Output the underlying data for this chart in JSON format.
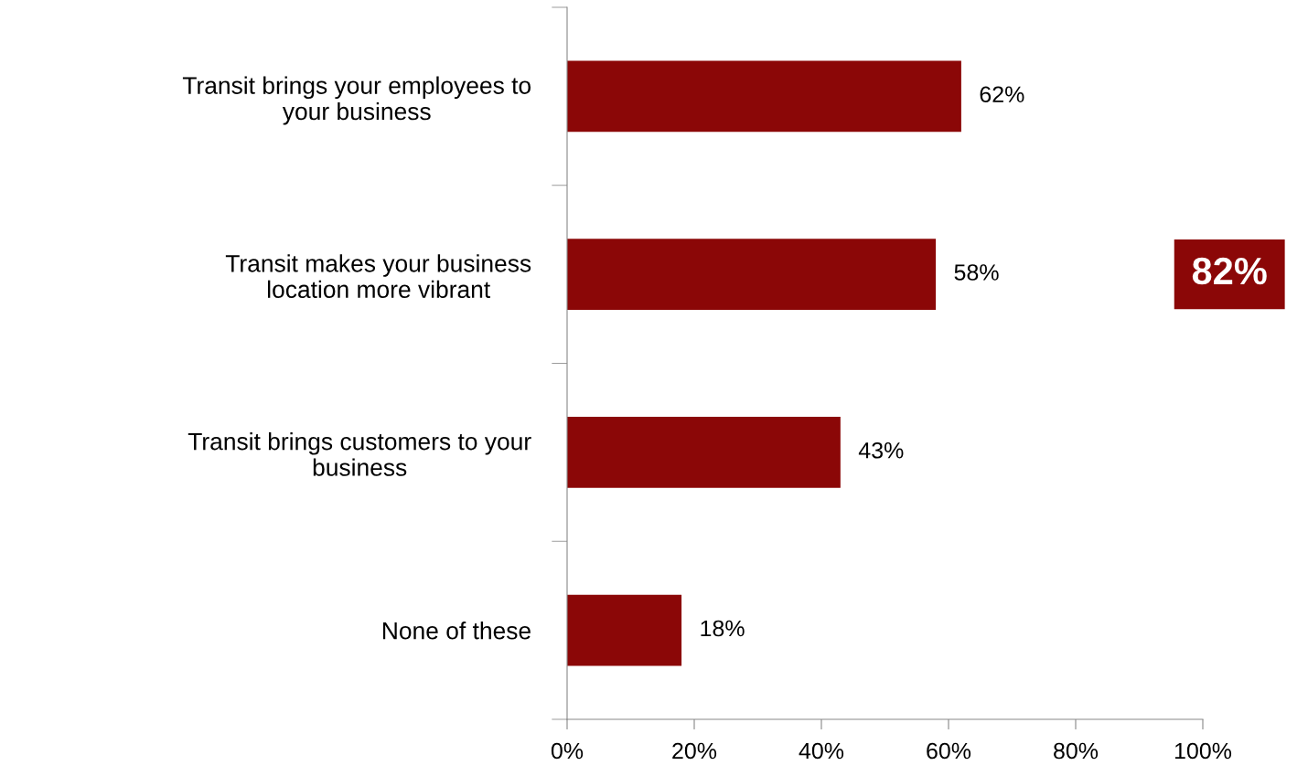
{
  "chart_data": {
    "type": "bar",
    "orientation": "horizontal",
    "categories": [
      "Transit brings your employees to\nyour business",
      "Transit makes your business\nlocation more vibrant",
      "Transit brings customers to your\nbusiness",
      "None of these"
    ],
    "values": [
      62,
      58,
      43,
      18
    ],
    "value_labels": [
      "62%",
      "58%",
      "43%",
      "18%"
    ],
    "color": "#8b0707",
    "xlim": [
      0,
      100
    ],
    "xticks": [
      {
        "value": 0,
        "label": "0%"
      },
      {
        "value": 20,
        "label": "20%"
      },
      {
        "value": 40,
        "label": "40%"
      },
      {
        "value": 60,
        "label": "60%"
      },
      {
        "value": 80,
        "label": "80%"
      },
      {
        "value": 100,
        "label": "100%"
      }
    ],
    "annotations": [
      "82%"
    ],
    "grid": false
  }
}
